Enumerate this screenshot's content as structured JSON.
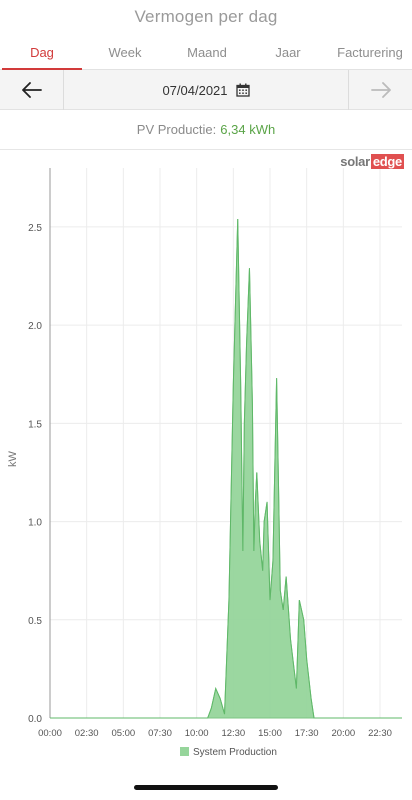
{
  "header": {
    "title": "Vermogen per dag"
  },
  "tabs": [
    {
      "label": "Dag",
      "active": true
    },
    {
      "label": "Week",
      "active": false
    },
    {
      "label": "Maand",
      "active": false
    },
    {
      "label": "Jaar",
      "active": false
    },
    {
      "label": "Facturering",
      "active": false
    }
  ],
  "date_nav": {
    "date": "07/04/2021",
    "prev_icon": "arrow-left-icon",
    "next_icon": "arrow-right-icon",
    "calendar_icon": "calendar-icon"
  },
  "summary": {
    "label": "PV Productie:",
    "value": "6,34 kWh"
  },
  "brand": {
    "part1": "solar",
    "part2": "edge"
  },
  "colors": {
    "accent": "#d23a3a",
    "series": "#96d59b",
    "series_stroke": "#7cc483",
    "value_green": "#5aa447"
  },
  "chart_data": {
    "type": "area",
    "ylabel": "kW",
    "xlabel": "",
    "ylim": [
      0,
      2.8
    ],
    "yticks": [
      "0.0",
      "0.5",
      "1.0",
      "1.5",
      "2.0",
      "2.5"
    ],
    "ytick_values": [
      0,
      0.5,
      1.0,
      1.5,
      2.0,
      2.5
    ],
    "xlim": [
      0,
      24
    ],
    "xticks": [
      "00:00",
      "02:30",
      "05:00",
      "07:30",
      "10:00",
      "12:30",
      "15:00",
      "17:30",
      "20:00",
      "22:30"
    ],
    "xtick_values": [
      0,
      2.5,
      5,
      7.5,
      10,
      12.5,
      15,
      17.5,
      20,
      22.5
    ],
    "grid": true,
    "legend_position": "bottom",
    "series": [
      {
        "name": "System Production",
        "x": [
          0,
          10.75,
          11.0,
          11.3,
          11.6,
          11.9,
          12.2,
          12.5,
          12.8,
          13.0,
          13.15,
          13.25,
          13.4,
          13.6,
          13.8,
          13.9,
          14.0,
          14.1,
          14.3,
          14.5,
          14.6,
          14.8,
          15.0,
          15.2,
          15.45,
          15.6,
          15.7,
          15.9,
          16.1,
          16.4,
          16.8,
          17.0,
          17.3,
          17.5,
          17.8,
          18.0,
          24
        ],
        "y": [
          0,
          0,
          0.05,
          0.15,
          0.1,
          0.02,
          0.6,
          1.7,
          2.54,
          1.7,
          0.85,
          1.5,
          1.9,
          2.29,
          1.6,
          0.85,
          1.1,
          1.25,
          0.9,
          0.75,
          1.0,
          1.1,
          0.6,
          0.8,
          1.73,
          1.1,
          0.65,
          0.55,
          0.72,
          0.4,
          0.15,
          0.6,
          0.5,
          0.3,
          0.1,
          0,
          0
        ]
      }
    ]
  }
}
